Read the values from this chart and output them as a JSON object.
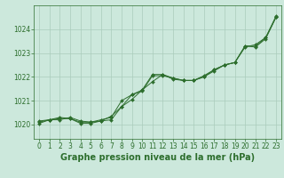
{
  "background_color": "#cce8dc",
  "grid_color": "#aaccbb",
  "line_color": "#2d6e2d",
  "marker_color": "#2d6e2d",
  "xlabel": "Graphe pression niveau de la mer (hPa)",
  "xlabel_fontsize": 7,
  "xlabel_fontweight": "bold",
  "ylim": [
    1019.4,
    1025.0
  ],
  "xlim": [
    -0.5,
    23.5
  ],
  "yticks": [
    1020,
    1021,
    1022,
    1023,
    1024
  ],
  "xticks": [
    0,
    1,
    2,
    3,
    4,
    5,
    6,
    7,
    8,
    9,
    10,
    11,
    12,
    13,
    14,
    15,
    16,
    17,
    18,
    19,
    20,
    21,
    22,
    23
  ],
  "tick_fontsize": 5.5,
  "line1_x": [
    0,
    1,
    2,
    3,
    4,
    5,
    6,
    7,
    8,
    9,
    10,
    11,
    12,
    13,
    14,
    15,
    16,
    17,
    18,
    19,
    20,
    21,
    22,
    23
  ],
  "line1_y": [
    1020.05,
    1020.2,
    1020.2,
    1020.3,
    1020.15,
    1020.1,
    1020.15,
    1020.2,
    1020.75,
    1021.05,
    1021.45,
    1021.8,
    1022.1,
    1021.9,
    1021.85,
    1021.85,
    1022.0,
    1022.25,
    1022.5,
    1022.6,
    1023.25,
    1023.35,
    1023.65,
    1024.5
  ],
  "line2_x": [
    0,
    1,
    2,
    3,
    4,
    5,
    6,
    7,
    8,
    9,
    10,
    11,
    12,
    13,
    14,
    15,
    16,
    17,
    18,
    19,
    20,
    21,
    22,
    23
  ],
  "line2_y": [
    1020.15,
    1020.2,
    1020.3,
    1020.25,
    1020.05,
    1020.05,
    1020.15,
    1020.35,
    1020.75,
    1021.25,
    1021.45,
    1022.1,
    1022.1,
    1021.95,
    1021.85,
    1021.85,
    1022.05,
    1022.3,
    1022.5,
    1022.6,
    1023.3,
    1023.28,
    1023.65,
    1024.55
  ],
  "line3_x": [
    0,
    1,
    2,
    3,
    4,
    5,
    6,
    7,
    8,
    9,
    10,
    11,
    12,
    13,
    14,
    15,
    16,
    17,
    18,
    19,
    20,
    21,
    22,
    23
  ],
  "line3_y": [
    1020.1,
    1020.2,
    1020.25,
    1020.25,
    1020.1,
    1020.1,
    1020.2,
    1020.3,
    1021.0,
    1021.25,
    1021.4,
    1022.05,
    1022.05,
    1021.95,
    1021.85,
    1021.85,
    1022.0,
    1022.3,
    1022.5,
    1022.6,
    1023.3,
    1023.25,
    1023.6,
    1024.5
  ]
}
